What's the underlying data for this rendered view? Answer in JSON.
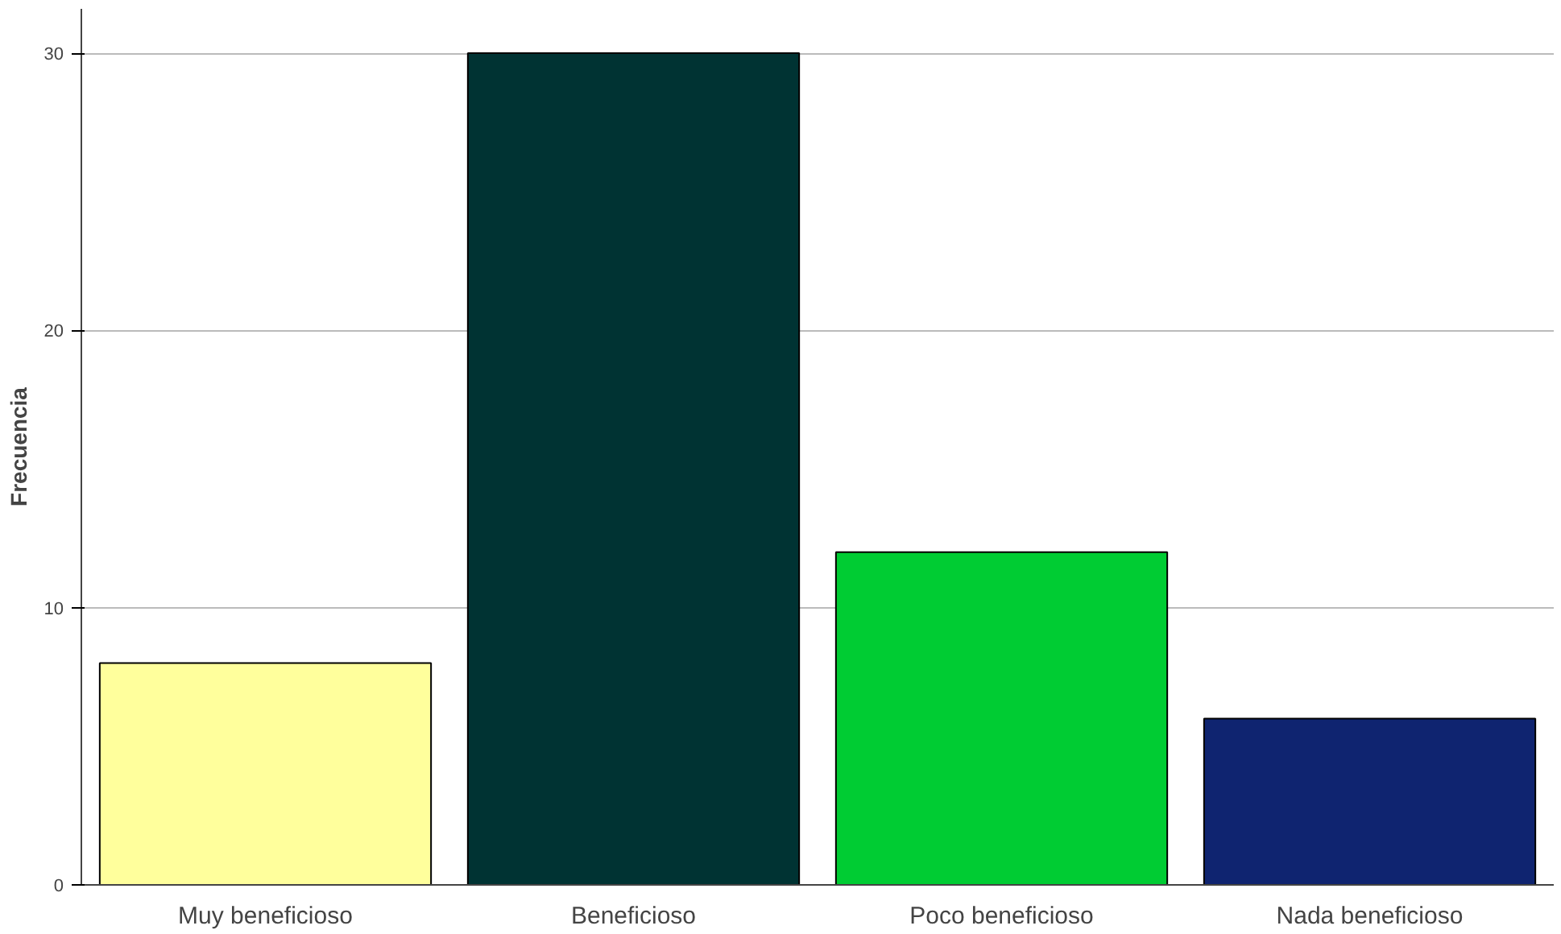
{
  "chart_data": {
    "type": "bar",
    "ylabel": "Frecuencia",
    "categories": [
      "Muy beneficioso",
      "Beneficioso",
      "Poco beneficioso",
      "Nada beneficioso"
    ],
    "values": [
      8,
      30,
      12,
      6
    ],
    "colors": [
      "#ffff9c",
      "#003333",
      "#00cc33",
      "#0f2470"
    ],
    "ylim": [
      0,
      31.6
    ],
    "yticks": [
      0,
      10,
      20,
      30
    ],
    "grid": "y"
  }
}
